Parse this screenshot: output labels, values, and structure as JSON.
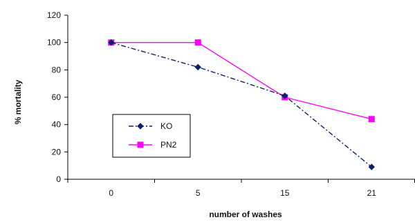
{
  "chart_data": {
    "type": "line",
    "categories": [
      "0",
      "5",
      "15",
      "21"
    ],
    "series": [
      {
        "name": "KO",
        "values": [
          100,
          82,
          61,
          9
        ],
        "color": "#0b1f6b",
        "line_style": "dash-dot",
        "marker": "diamond"
      },
      {
        "name": "PN2",
        "values": [
          100,
          100,
          60,
          44
        ],
        "color": "#ff00ff",
        "line_style": "solid",
        "marker": "square"
      }
    ],
    "xlabel": "number of washes",
    "ylabel": "% mortality",
    "ylim": [
      0,
      120
    ],
    "yticks": [
      0,
      20,
      40,
      60,
      80,
      100,
      120
    ],
    "grid": false,
    "legend_position": "left"
  }
}
